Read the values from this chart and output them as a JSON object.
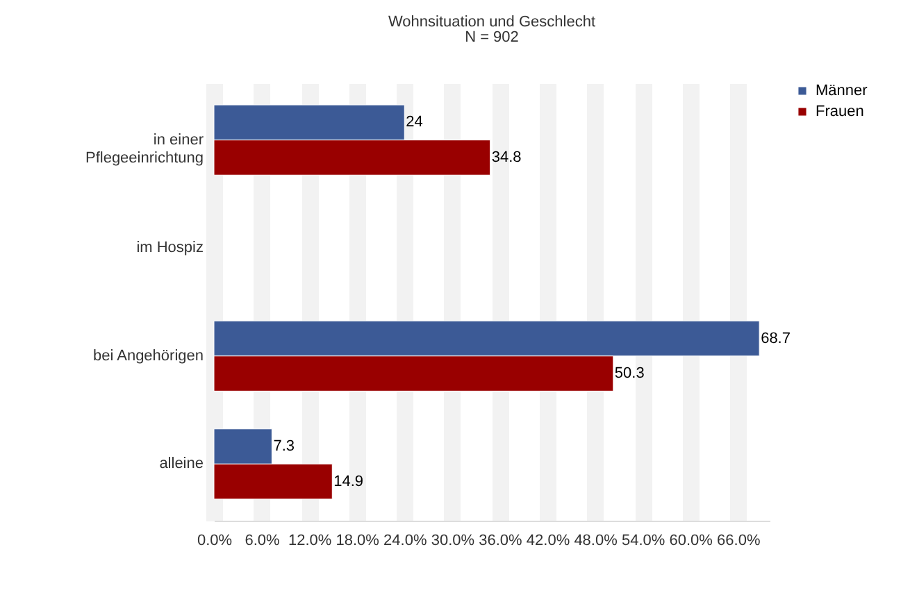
{
  "chart_data": {
    "type": "bar",
    "orientation": "horizontal",
    "title": "Wohnsituation und Geschlecht",
    "subtitle": "N = 902",
    "categories": [
      "in einer Pflegeeinrichtung",
      "im Hospiz",
      "bei Angehörigen",
      "alleine"
    ],
    "series": [
      {
        "name": "Männer",
        "color": "#3c5a96",
        "values": [
          24,
          null,
          68.7,
          7.3
        ]
      },
      {
        "name": "Frauen",
        "color": "#990000",
        "values": [
          34.8,
          null,
          50.3,
          14.9
        ]
      }
    ],
    "xlim": [
      0,
      70
    ],
    "xticks": [
      {
        "value": 0,
        "label": "0.0%"
      },
      {
        "value": 6,
        "label": "6.0%"
      },
      {
        "value": 12,
        "label": "12.0%"
      },
      {
        "value": 18,
        "label": "18.0%"
      },
      {
        "value": 24,
        "label": "24.0%"
      },
      {
        "value": 30,
        "label": "30.0%"
      },
      {
        "value": 36,
        "label": "36.0%"
      },
      {
        "value": 42,
        "label": "42.0%"
      },
      {
        "value": 48,
        "label": "48.0%"
      },
      {
        "value": 54,
        "label": "54.0%"
      },
      {
        "value": 60,
        "label": "60.0%"
      },
      {
        "value": 66,
        "label": "66.0%"
      }
    ],
    "grid": "x",
    "legend": "right",
    "data_labels": true
  }
}
